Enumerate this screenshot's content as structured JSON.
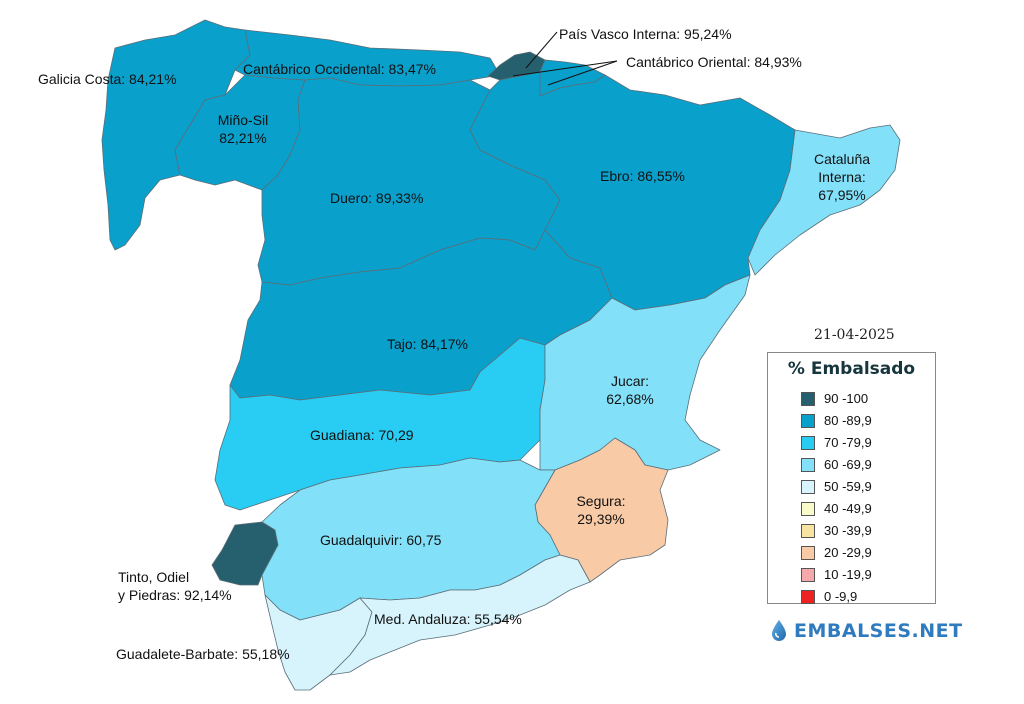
{
  "date": "21-04-2025",
  "legend": {
    "title": "% Embalsado",
    "items": [
      {
        "label": "90 -100",
        "color": "#26606e"
      },
      {
        "label": "80 -89,9",
        "color": "#0aa0cc"
      },
      {
        "label": "70 -79,9",
        "color": "#29ccf3"
      },
      {
        "label": "60 -69,9",
        "color": "#82e0f8"
      },
      {
        "label": "50 -59,9",
        "color": "#d7f4fc"
      },
      {
        "label": "40 -49,9",
        "color": "#fafacb"
      },
      {
        "label": "30 -39,9",
        "color": "#f7e4a3"
      },
      {
        "label": "20 -29,9",
        "color": "#f8caa6"
      },
      {
        "label": "10 -19,9",
        "color": "#f4aaaa"
      },
      {
        "label": "0 -9,9",
        "color": "#ee2222"
      }
    ]
  },
  "basins": {
    "galicia_costa": {
      "label": "Galicia Costa: 84,21%",
      "value": 84.21
    },
    "mino_sil": {
      "line1": "Miño-Sil",
      "line2": "82,21%",
      "value": 82.21
    },
    "cantabrico_occidental": {
      "label": "Cantábrico Occidental: 83,47%",
      "value": 83.47
    },
    "pais_vasco": {
      "label": "País Vasco Interna: 95,24%",
      "value": 95.24
    },
    "cantabrico_oriental": {
      "label": "Cantábrico Oriental: 84,93%",
      "value": 84.93
    },
    "duero": {
      "label": "Duero: 89,33%",
      "value": 89.33
    },
    "ebro": {
      "label": "Ebro: 86,55%",
      "value": 86.55
    },
    "cataluna": {
      "line1": "Cataluña",
      "line2": "Interna:",
      "line3": "67,95%",
      "value": 67.95
    },
    "tajo": {
      "label": "Tajo: 84,17%",
      "value": 84.17
    },
    "jucar": {
      "line1": "Jucar:",
      "line2": "62,68%",
      "value": 62.68
    },
    "guadiana": {
      "label": "Guadiana: 70,29",
      "value": 70.29
    },
    "segura": {
      "line1": "Segura:",
      "line2": "29,39%",
      "value": 29.39
    },
    "guadalquivir": {
      "label": "Guadalquivir: 60,75",
      "value": 60.75
    },
    "tinto": {
      "line1": "Tinto, Odiel",
      "line2": "y Piedras: 92,14%",
      "value": 92.14
    },
    "med_andaluza": {
      "label": "Med. Andaluza: 55,54%",
      "value": 55.54
    },
    "guadalete": {
      "label": "Guadalete-Barbate: 55,18%",
      "value": 55.18
    }
  },
  "brand": {
    "name": "EMBALSES.NET",
    "icon": "water-drop-icon"
  }
}
